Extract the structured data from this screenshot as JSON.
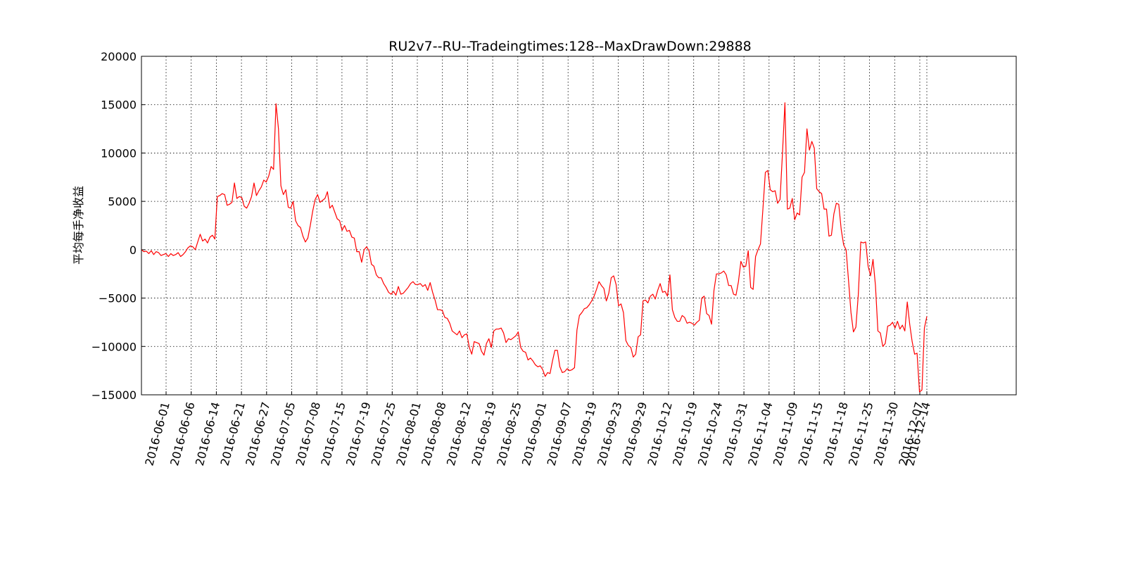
{
  "chart_data": {
    "type": "line",
    "title": "RU2v7--RU--Tradeingtimes:128--MaxDrawDown:29888",
    "xlabel": "",
    "ylabel": "平均每手净收益",
    "ylim": [
      -15000,
      20000
    ],
    "y_ticks": [
      20000,
      15000,
      10000,
      5000,
      0,
      -5000,
      -10000,
      -15000
    ],
    "y_tick_labels": [
      "20000",
      "15000",
      "10000",
      "5000",
      "0",
      "−5000",
      "−10000",
      "−15000"
    ],
    "x_tick_labels": [
      "2016-06-01",
      "2016-06-06",
      "2016-06-14",
      "2016-06-21",
      "2016-06-27",
      "2016-07-05",
      "2016-07-08",
      "2016-07-15",
      "2016-07-19",
      "2016-07-25",
      "2016-08-01",
      "2016-08-08",
      "2016-08-12",
      "2016-08-19",
      "2016-08-25",
      "2016-09-01",
      "2016-09-07",
      "2016-09-19",
      "2016-09-23",
      "2016-09-29",
      "2016-10-12",
      "2016-10-19",
      "2016-10-24",
      "2016-10-31",
      "2016-11-04",
      "2016-11-09",
      "2016-11-15",
      "2016-11-18",
      "2016-11-25",
      "2016-11-30",
      "2016-12-07",
      "2016-12-14"
    ],
    "grid": true,
    "line_color": "#ff0000",
    "series": [
      {
        "values": [
          0,
          -200,
          -150,
          -400,
          -100,
          -500,
          -200,
          -300,
          -600,
          -500,
          -400,
          -700,
          -400,
          -600,
          -500,
          -300,
          -700,
          -500,
          -200,
          200,
          400,
          300,
          0,
          800,
          1600,
          900,
          1100,
          700,
          1300,
          1500,
          1100,
          5500,
          5600,
          5800,
          5700,
          4600,
          4700,
          4900,
          6900,
          5300,
          5500,
          5400,
          4500,
          4300,
          4800,
          5500,
          6900,
          5600,
          6100,
          6500,
          7200,
          7000,
          7600,
          8600,
          8300,
          15100,
          12500,
          6600,
          5700,
          6200,
          4400,
          4300,
          5000,
          3000,
          2500,
          2300,
          1400,
          800,
          1200,
          2500,
          4000,
          5200,
          5700,
          4900,
          5100,
          5300,
          6000,
          4300,
          4600,
          3900,
          3200,
          3000,
          2000,
          2500,
          1900,
          2000,
          1300,
          1200,
          -200,
          -200,
          -1300,
          0,
          300,
          -100,
          -1500,
          -1700,
          -2600,
          -2900,
          -2900,
          -3500,
          -3900,
          -4400,
          -4600,
          -4300,
          -4700,
          -3800,
          -4600,
          -4500,
          -4200,
          -3900,
          -3500,
          -3300,
          -3600,
          -3600,
          -3500,
          -3800,
          -3600,
          -4200,
          -3400,
          -4400,
          -5200,
          -6200,
          -6200,
          -6300,
          -7000,
          -7100,
          -7600,
          -8400,
          -8600,
          -8800,
          -8400,
          -9100,
          -8800,
          -8700,
          -10100,
          -10800,
          -9500,
          -9600,
          -9700,
          -10500,
          -10900,
          -9700,
          -9200,
          -10100,
          -8400,
          -8200,
          -8200,
          -8100,
          -8600,
          -9600,
          -9200,
          -9300,
          -9100,
          -8900,
          -8500,
          -10100,
          -10500,
          -10600,
          -11400,
          -11200,
          -11500,
          -11900,
          -12100,
          -12000,
          -12400,
          -13100,
          -12700,
          -12800,
          -11500,
          -10400,
          -10400,
          -12100,
          -12700,
          -12600,
          -12300,
          -12500,
          -12400,
          -12200,
          -8300,
          -6800,
          -6500,
          -6100,
          -6000,
          -5700,
          -5300,
          -4800,
          -4100,
          -3300,
          -3700,
          -4000,
          -5300,
          -4500,
          -2900,
          -2700,
          -3600,
          -5800,
          -5600,
          -6500,
          -9400,
          -9900,
          -10100,
          -11100,
          -10800,
          -9000,
          -8800,
          -5300,
          -5200,
          -5500,
          -4800,
          -4600,
          -5100,
          -4200,
          -3500,
          -4400,
          -4300,
          -4800,
          -2600,
          -6200,
          -7000,
          -7400,
          -7400,
          -6800,
          -7000,
          -7600,
          -7500,
          -7600,
          -7800,
          -7500,
          -7300,
          -5000,
          -4800,
          -6600,
          -6800,
          -7700,
          -4200,
          -2500,
          -2500,
          -2400,
          -2200,
          -2600,
          -3700,
          -3700,
          -4600,
          -4700,
          -3300,
          -1200,
          -1800,
          -1700,
          -100,
          -3900,
          -4100,
          -700,
          0,
          600,
          4200,
          8000,
          8200,
          6200,
          6000,
          6100,
          4800,
          5200,
          10000,
          15200,
          4200,
          4300,
          5300,
          3100,
          3800,
          3600,
          7500,
          8000,
          12500,
          10300,
          11200,
          10500,
          6300,
          6000,
          5800,
          4200,
          4200,
          1400,
          1500,
          3700,
          4800,
          4700,
          2100,
          500,
          0,
          -3200,
          -6500,
          -8500,
          -8000,
          -4600,
          800,
          700,
          800,
          -1700,
          -2700,
          -1000,
          -3700,
          -8400,
          -8600,
          -10000,
          -9700,
          -7900,
          -7800,
          -7500,
          -8100,
          -7400,
          -8200,
          -7800,
          -8400,
          -5400,
          -7700,
          -9500,
          -10800,
          -10700,
          -14700,
          -14500,
          -8100,
          -6900
        ]
      }
    ]
  }
}
